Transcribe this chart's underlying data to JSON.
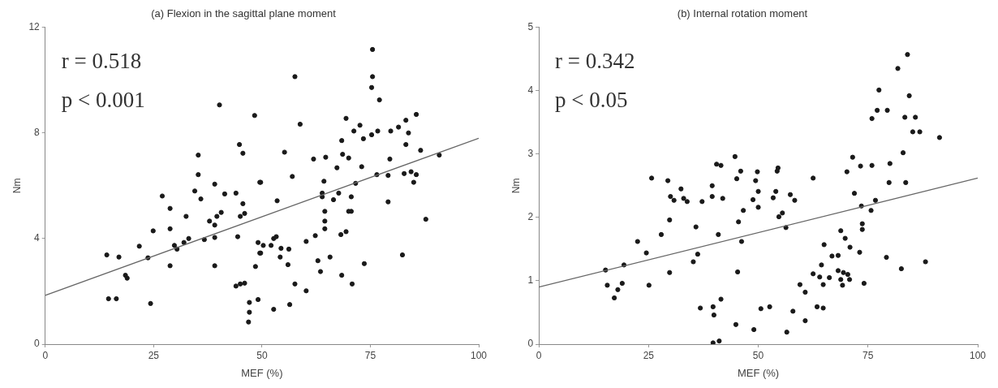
{
  "chart_data": [
    {
      "type": "scatter",
      "title": "(a) Flexion in the sagittal plane moment",
      "xlabel": "MEF (%)",
      "ylabel": "Nm",
      "xlim": [
        0,
        100
      ],
      "xticks": [
        0,
        25,
        50,
        75,
        100
      ],
      "ylim": [
        0,
        12
      ],
      "yticks": [
        0,
        4,
        8,
        12
      ],
      "annotations": [
        "r = 0.518",
        "p < 0.001"
      ],
      "series": [
        {
          "marker": "circle",
          "color": "#1a1a1a",
          "x": [
            40.2,
            48.3,
            44.8,
            45.6,
            35.3,
            35.3,
            39.1,
            49.5,
            34.5,
            35.9,
            41.4,
            44.0,
            45.6,
            27.0,
            28.8,
            32.5,
            37.9,
            39.6,
            40.6,
            39.1,
            45.0,
            46.0,
            24.9,
            28.8,
            44.4,
            21.7,
            29.8,
            30.4,
            32.0,
            33.1,
            36.7,
            39.1,
            14.2,
            17.0,
            23.7,
            28.8,
            39.1,
            49.1,
            49.5,
            48.5,
            18.5,
            18.9,
            14.6,
            16.4,
            24.3,
            44.0,
            45.0,
            46.0,
            47.1,
            47.1,
            46.9,
            49.1,
            75.5,
            57.6,
            75.5,
            75.3,
            77.1,
            58.8,
            69.4,
            72.6,
            85.6,
            83.2,
            81.5,
            83.8,
            79.7,
            76.7,
            75.3,
            73.4,
            71.2,
            68.4,
            83.2,
            55.2,
            86.6,
            90.9,
            61.9,
            64.7,
            68.6,
            70.0,
            79.5,
            67.3,
            73.0,
            57.0,
            64.3,
            71.6,
            76.5,
            79.1,
            82.8,
            84.4,
            85.6,
            85.0,
            49.7,
            63.9,
            63.9,
            67.7,
            66.5,
            70.6,
            53.5,
            79.1,
            64.5,
            70.0,
            70.6,
            64.5,
            64.5,
            87.8,
            69.4,
            68.2,
            62.3,
            53.3,
            52.7,
            60.2,
            50.3,
            52.1,
            54.4,
            56.2,
            49.7,
            54.2,
            65.7,
            62.9,
            56.0,
            73.6,
            82.4,
            63.5,
            68.4,
            70.8,
            57.6,
            60.2,
            56.4,
            52.7
          ],
          "values": [
            9.06,
            8.66,
            7.56,
            7.23,
            7.16,
            6.42,
            6.06,
            6.13,
            5.8,
            5.5,
            5.69,
            5.72,
            5.32,
            5.61,
            5.14,
            4.84,
            4.66,
            4.84,
            4.99,
            4.51,
            4.84,
            4.95,
            4.29,
            4.37,
            4.07,
            3.71,
            3.74,
            3.6,
            3.85,
            4.0,
            3.96,
            4.04,
            3.38,
            3.3,
            3.27,
            2.97,
            2.97,
            3.85,
            3.45,
            2.94,
            2.61,
            2.5,
            1.72,
            1.72,
            1.54,
            2.2,
            2.28,
            2.31,
            1.58,
            1.21,
            0.84,
            1.69,
            11.16,
            10.13,
            10.13,
            9.72,
            9.25,
            8.33,
            8.55,
            8.29,
            8.7,
            8.48,
            8.22,
            8.0,
            8.07,
            8.07,
            7.93,
            7.78,
            8.07,
            7.71,
            7.56,
            7.27,
            7.34,
            7.16,
            7.01,
            7.08,
            7.19,
            7.05,
            7.01,
            6.68,
            6.72,
            6.35,
            6.17,
            6.09,
            6.42,
            6.39,
            6.46,
            6.53,
            6.42,
            6.13,
            6.13,
            5.72,
            5.58,
            5.72,
            5.47,
            5.58,
            5.43,
            5.39,
            5.03,
            5.03,
            5.03,
            4.66,
            4.37,
            4.73,
            4.26,
            4.15,
            4.11,
            4.07,
            4.0,
            3.89,
            3.74,
            3.74,
            3.63,
            3.6,
            3.45,
            3.3,
            3.3,
            3.16,
            3.01,
            3.05,
            3.38,
            2.75,
            2.61,
            2.28,
            2.28,
            2.02,
            1.5,
            1.32
          ]
        },
        {
          "type": "line",
          "marker": "none",
          "color": "#666666",
          "x": [
            0,
            100
          ],
          "values": [
            1.85,
            7.8
          ]
        }
      ]
    },
    {
      "type": "scatter",
      "title": "(b) Internal rotation moment",
      "xlabel": "MEF (%)",
      "ylabel": "Nm",
      "xlim": [
        0,
        100
      ],
      "xticks": [
        0,
        25,
        50,
        75,
        100
      ],
      "ylim": [
        0,
        5
      ],
      "yticks": [
        0,
        1,
        2,
        3,
        4,
        5
      ],
      "annotations": [
        "r = 0.342",
        "p < 0.05"
      ],
      "series": [
        {
          "marker": "circle",
          "color": "#1a1a1a",
          "x": [
            44.7,
            40.5,
            41.5,
            46.0,
            45.1,
            49.8,
            25.7,
            29.4,
            32.4,
            39.5,
            49.4,
            50.0,
            30.0,
            30.8,
            33.0,
            33.8,
            37.2,
            39.5,
            41.9,
            48.8,
            50.0,
            46.6,
            29.8,
            45.5,
            35.8,
            27.9,
            40.9,
            22.5,
            46.2,
            24.5,
            36.2,
            35.2,
            19.4,
            15.2,
            29.8,
            45.3,
            15.6,
            19.0,
            18.0,
            25.1,
            17.2,
            41.5,
            36.8,
            39.7,
            39.9,
            44.9,
            49.0,
            41.1,
            39.7,
            50.6,
            84.0,
            81.8,
            77.5,
            84.4,
            77.1,
            79.4,
            75.9,
            83.4,
            85.8,
            85.2,
            86.8,
            91.3,
            83.0,
            71.5,
            73.3,
            75.9,
            80.0,
            70.2,
            62.5,
            79.8,
            83.6,
            54.5,
            54.3,
            54.0,
            53.4,
            57.3,
            58.3,
            71.9,
            73.5,
            76.7,
            75.7,
            54.7,
            55.5,
            56.3,
            73.7,
            73.7,
            68.8,
            69.8,
            65.0,
            70.9,
            73.1,
            66.8,
            68.2,
            79.2,
            88.1,
            82.6,
            64.4,
            62.5,
            64.0,
            66.2,
            68.2,
            69.4,
            70.4,
            68.8,
            70.8,
            64.8,
            69.2,
            74.1,
            59.5,
            60.7,
            63.4,
            64.8,
            57.9,
            52.6,
            60.7,
            56.5
          ],
          "values": [
            2.96,
            2.84,
            2.82,
            2.73,
            2.61,
            2.72,
            2.62,
            2.58,
            2.45,
            2.5,
            2.58,
            2.41,
            2.33,
            2.27,
            2.3,
            2.25,
            2.25,
            2.33,
            2.3,
            2.28,
            2.16,
            2.11,
            1.96,
            1.93,
            1.85,
            1.73,
            1.73,
            1.62,
            1.62,
            1.44,
            1.42,
            1.3,
            1.25,
            1.17,
            1.13,
            1.14,
            0.93,
            0.96,
            0.86,
            0.93,
            0.73,
            0.71,
            0.57,
            0.59,
            0.46,
            0.31,
            0.23,
            0.05,
            0.02,
            0.56,
            4.57,
            4.35,
            4.01,
            3.92,
            3.69,
            3.69,
            3.56,
            3.58,
            3.58,
            3.35,
            3.35,
            3.26,
            3.02,
            2.95,
            2.81,
            2.82,
            2.85,
            2.72,
            2.62,
            2.55,
            2.55,
            2.78,
            2.73,
            2.41,
            2.31,
            2.36,
            2.27,
            2.38,
            2.18,
            2.27,
            2.11,
            2.01,
            2.07,
            1.84,
            1.9,
            1.81,
            1.79,
            1.67,
            1.57,
            1.53,
            1.45,
            1.39,
            1.4,
            1.37,
            1.3,
            1.19,
            1.25,
            1.11,
            1.06,
            1.05,
            1.16,
            1.13,
            1.1,
            1.02,
            1.02,
            0.94,
            0.93,
            0.96,
            0.94,
            0.82,
            0.59,
            0.57,
            0.52,
            0.59,
            0.37,
            0.19
          ]
        },
        {
          "type": "line",
          "marker": "none",
          "color": "#666666",
          "x": [
            0,
            100
          ],
          "values": [
            0.9,
            2.62
          ]
        }
      ]
    }
  ]
}
